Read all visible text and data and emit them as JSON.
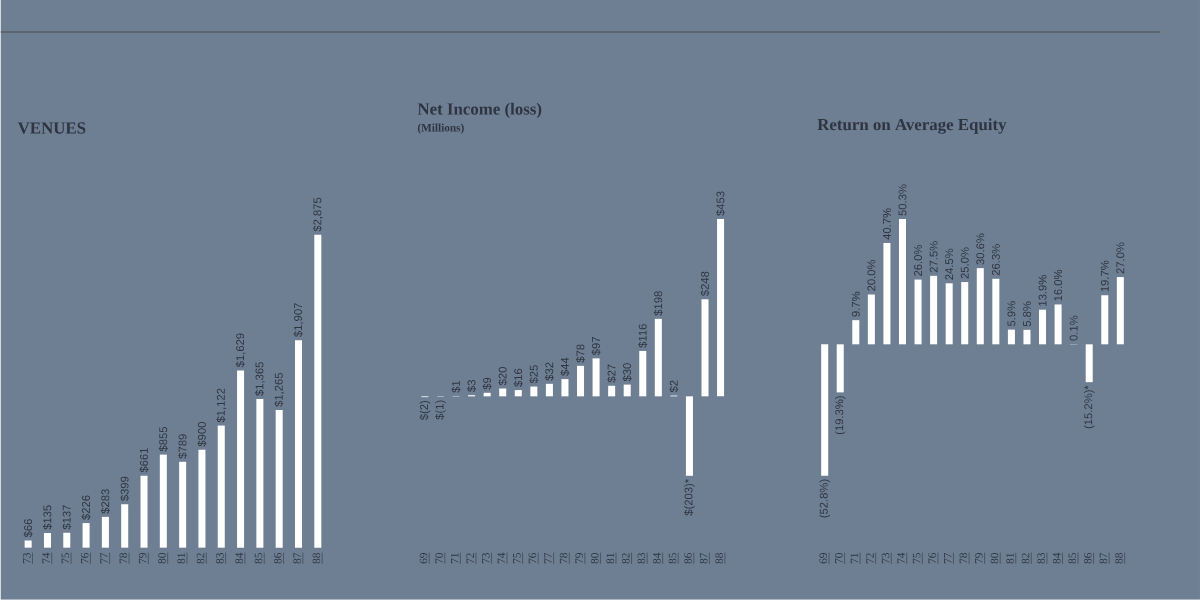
{
  "chart_data": [
    {
      "type": "bar",
      "title": "VENUES",
      "categories": [
        "73",
        "74",
        "75",
        "76",
        "77",
        "78",
        "79",
        "80",
        "81",
        "82",
        "83",
        "84",
        "85",
        "86",
        "87",
        "88"
      ],
      "values": [
        66,
        135,
        137,
        226,
        283,
        399,
        661,
        855,
        789,
        900,
        1122,
        1629,
        1365,
        1265,
        1907,
        2875
      ],
      "value_labels": [
        "$66",
        "$135",
        "$137",
        "$226",
        "$283",
        "$399",
        "$661",
        "$855",
        "$789",
        "$900",
        "$1,122",
        "$1,629",
        "$1,365",
        "$1,265",
        "$1,907",
        "$2,875"
      ],
      "color": "#ffffff",
      "tick_labels": "x"
    },
    {
      "type": "bar",
      "title": "Net Income (loss)",
      "subtitle": "(Millions)",
      "categories": [
        "69",
        "70",
        "71",
        "72",
        "73",
        "74",
        "75",
        "76",
        "77",
        "78",
        "79",
        "80",
        "81",
        "82",
        "83",
        "84",
        "85",
        "86",
        "87",
        "88"
      ],
      "values": [
        -2,
        -1,
        1,
        3,
        9,
        20,
        16,
        25,
        32,
        44,
        78,
        97,
        27,
        30,
        116,
        198,
        2,
        -203,
        248,
        453
      ],
      "value_labels": [
        "$(2)",
        "$(1)",
        "$1",
        "$3",
        "$9",
        "$20",
        "$16",
        "$25",
        "$32",
        "$44",
        "$78",
        "$97",
        "$27",
        "$30",
        "$116",
        "$198",
        "$2",
        "$(203)*",
        "$248",
        "$453"
      ],
      "color": "#ffffff",
      "tick_labels": "x"
    },
    {
      "type": "bar",
      "title": "Return on Average Equity",
      "categories": [
        "69",
        "70",
        "71",
        "72",
        "73",
        "74",
        "75",
        "76",
        "77",
        "78",
        "79",
        "80",
        "81",
        "82",
        "83",
        "84",
        "85",
        "86",
        "87",
        "88"
      ],
      "values": [
        -52.8,
        -19.3,
        9.7,
        20.0,
        40.7,
        50.3,
        26.0,
        27.5,
        24.5,
        25.0,
        30.6,
        26.3,
        5.9,
        5.8,
        13.9,
        16.0,
        0.1,
        -15.2,
        19.7,
        27.0
      ],
      "value_labels": [
        "(52.8%)",
        "(19.3%)",
        "9.7%",
        "20.0%",
        "40.7%",
        "50.3%",
        "26.0%",
        "27.5%",
        "24.5%",
        "25.0%",
        "30.6%",
        "26.3%",
        "5.9%",
        "5.8%",
        "13.9%",
        "16.0%",
        "0.1%",
        "(15.2%)*",
        "19.7%",
        "27.0%"
      ],
      "color": "#ffffff",
      "tick_labels": "x"
    }
  ]
}
